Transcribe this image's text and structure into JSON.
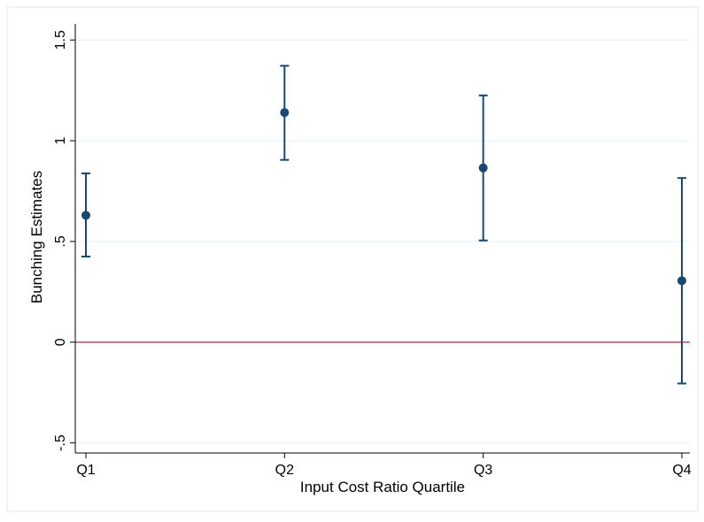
{
  "chart_data": {
    "type": "scatter",
    "xlabel": "Input Cost Ratio Quartile",
    "ylabel": "Bunching Estimates",
    "categories": [
      "Q1",
      "Q2",
      "Q3",
      "Q4"
    ],
    "series": [
      {
        "values": [
          0.63,
          1.14,
          0.865,
          0.305
        ],
        "ci_low": [
          0.425,
          0.905,
          0.505,
          -0.205
        ],
        "ci_high": [
          0.838,
          1.372,
          1.225,
          0.815
        ]
      }
    ],
    "ylim": [
      -0.55,
      1.58
    ],
    "yticks": [
      {
        "value": -0.5,
        "label": "-.5"
      },
      {
        "value": 0,
        "label": "0"
      },
      {
        "value": 0.5,
        "label": ".5"
      },
      {
        "value": 1,
        "label": "1"
      },
      {
        "value": 1.5,
        "label": "1.5"
      }
    ],
    "reference_line": {
      "value": 0,
      "color": "#b0283a"
    },
    "grid": true,
    "colors": {
      "marker": "#1a476f",
      "grid": "#e4eef3",
      "axis": "#000000",
      "frame": "#e6e6e6"
    }
  }
}
